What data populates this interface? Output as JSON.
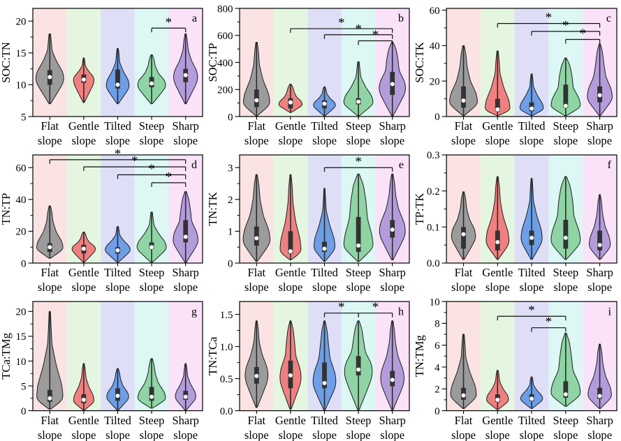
{
  "figure": {
    "title": "",
    "categories": [
      {
        "name": "Flat slope",
        "line1": "Flat",
        "line2": "slope"
      },
      {
        "name": "Gentle slope",
        "line1": "Gentle",
        "line2": "slope"
      },
      {
        "name": "Tilted slope",
        "line1": "Tilted",
        "line2": "slope"
      },
      {
        "name": "Steep slope",
        "line1": "Steep",
        "line2": "slope"
      },
      {
        "name": "Sharp slope",
        "line1": "Sharp",
        "line2": "slope"
      }
    ],
    "significance_symbol": "*"
  },
  "colors": {
    "band_fills": [
      "#fbe3e3",
      "#e4f6e0",
      "#dedff7",
      "#dcf7f4",
      "#fae2f8"
    ],
    "violin_fills": [
      "#9b9b9b",
      "#f08080",
      "#6d9ee6",
      "#8fd4a4",
      "#b49cdb"
    ],
    "violin_edge": "#1f1f1f",
    "box_fill": "#323232",
    "whisker": "#2b2b2b",
    "median_dot": "#ffffff",
    "axis": "#000000",
    "background": "#ffffff"
  },
  "chart_data": [
    {
      "id": "a",
      "type": "violin",
      "ylabel": "SOC:TN",
      "ylim": [
        5,
        22
      ],
      "minor_step": 2.5,
      "yticks": [
        {
          "v": 5,
          "label": "5"
        },
        {
          "v": 10,
          "label": "10"
        },
        {
          "v": 15,
          "label": "15"
        },
        {
          "v": 20,
          "label": "20"
        }
      ],
      "violins": [
        {
          "category": "Flat slope",
          "min": 7,
          "max": 18,
          "q1": 10,
          "q3": 12.3,
          "median": 11.2,
          "mode": 11,
          "width": 0.95,
          "tail": 0.18
        },
        {
          "category": "Gentle slope",
          "min": 7.2,
          "max": 14.2,
          "q1": 10.3,
          "q3": 11.6,
          "median": 10.8,
          "mode": 10.8,
          "width": 0.7,
          "tail": 0.18
        },
        {
          "category": "Tilted slope",
          "min": 7,
          "max": 15.7,
          "q1": 9.4,
          "q3": 12.4,
          "median": 10,
          "mode": 9.9,
          "width": 0.78,
          "tail": 0.2
        },
        {
          "category": "Steep slope",
          "min": 7,
          "max": 14.7,
          "q1": 9.6,
          "q3": 11.2,
          "median": 10.2,
          "mode": 10,
          "width": 0.95,
          "tail": 0.3
        },
        {
          "category": "Sharp slope",
          "min": 7,
          "max": 18,
          "q1": 10.4,
          "q3": 12.5,
          "median": 11.5,
          "mode": 11.2,
          "width": 0.82,
          "tail": 0.25
        }
      ],
      "brackets": [
        {
          "from": "Steep slope",
          "to": "Sharp slope",
          "y": 18.9,
          "label": "*"
        }
      ]
    },
    {
      "id": "b",
      "type": "violin",
      "ylabel": "SOC:TP",
      "ylim": [
        0,
        800
      ],
      "minor_step": 100,
      "yticks": [
        {
          "v": 0,
          "label": "0"
        },
        {
          "v": 200,
          "label": "200"
        },
        {
          "v": 400,
          "label": "400"
        },
        {
          "v": 600,
          "label": "600"
        },
        {
          "v": 800,
          "label": "800"
        }
      ],
      "violins": [
        {
          "category": "Flat slope",
          "min": 5,
          "max": 550,
          "q1": 70,
          "q3": 200,
          "median": 120,
          "mode": 100,
          "width": 0.9,
          "tail": 0.25
        },
        {
          "category": "Gentle slope",
          "min": 30,
          "max": 240,
          "q1": 60,
          "q3": 135,
          "median": 105,
          "mode": 90,
          "width": 0.8,
          "tail": 0.35
        },
        {
          "category": "Tilted slope",
          "min": 5,
          "max": 220,
          "q1": 60,
          "q3": 120,
          "median": 95,
          "mode": 85,
          "width": 0.75,
          "tail": 0.25
        },
        {
          "category": "Steep slope",
          "min": 5,
          "max": 405,
          "q1": 90,
          "q3": 135,
          "median": 110,
          "mode": 105,
          "width": 1.0,
          "tail": 0.1
        },
        {
          "category": "Sharp slope",
          "min": 5,
          "max": 550,
          "q1": 160,
          "q3": 330,
          "median": 240,
          "mode": 210,
          "width": 0.9,
          "tail": 0.5
        }
      ],
      "brackets": [
        {
          "from": "Gentle slope",
          "to": "Sharp slope",
          "y": 650,
          "label": "*"
        },
        {
          "from": "Tilted slope",
          "to": "Sharp slope",
          "y": 605,
          "label": "*"
        },
        {
          "from": "Steep slope",
          "to": "Sharp slope",
          "y": 560,
          "label": "*"
        }
      ]
    },
    {
      "id": "c",
      "type": "violin",
      "ylabel": "SOC:TK",
      "ylim": [
        0,
        61
      ],
      "minor_step": 10,
      "yticks": [
        {
          "v": 0,
          "label": "0"
        },
        {
          "v": 20,
          "label": "20"
        },
        {
          "v": 40,
          "label": "40"
        },
        {
          "v": 60,
          "label": "60"
        }
      ],
      "violins": [
        {
          "category": "Flat slope",
          "min": 0.5,
          "max": 40,
          "q1": 5,
          "q3": 17,
          "median": 9,
          "mode": 8,
          "width": 0.95,
          "tail": 0.3
        },
        {
          "category": "Gentle slope",
          "min": 0.5,
          "max": 37,
          "q1": 3,
          "q3": 10,
          "median": 4,
          "mode": 4,
          "width": 0.85,
          "tail": 0.22
        },
        {
          "category": "Tilted slope",
          "min": 0.5,
          "max": 24,
          "q1": 3,
          "q3": 8,
          "median": 4.5,
          "mode": 4.5,
          "width": 0.8,
          "tail": 0.18
        },
        {
          "category": "Steep slope",
          "min": 0.5,
          "max": 33,
          "q1": 5,
          "q3": 18,
          "median": 6,
          "mode": 6,
          "width": 1.0,
          "tail": 0.5
        },
        {
          "category": "Sharp slope",
          "min": 0.5,
          "max": 41,
          "q1": 8,
          "q3": 17,
          "median": 12,
          "mode": 11,
          "width": 0.85,
          "tail": 0.38
        }
      ],
      "brackets": [
        {
          "from": "Gentle slope",
          "to": "Sharp slope",
          "y": 52.5,
          "label": "*"
        },
        {
          "from": "Tilted slope",
          "to": "Sharp slope",
          "y": 48,
          "label": "*"
        },
        {
          "from": "Steep slope",
          "to": "Sharp slope",
          "y": 43.5,
          "label": "*"
        }
      ]
    },
    {
      "id": "d",
      "type": "violin",
      "ylabel": "TN:TP",
      "ylim": [
        0,
        68
      ],
      "minor_step": 10,
      "yticks": [
        {
          "v": 0,
          "label": "0"
        },
        {
          "v": 20,
          "label": "20"
        },
        {
          "v": 40,
          "label": "40"
        },
        {
          "v": 60,
          "label": "60"
        }
      ],
      "violins": [
        {
          "category": "Flat slope",
          "min": 3,
          "max": 36,
          "q1": 7,
          "q3": 12.5,
          "median": 10,
          "mode": 9.5,
          "width": 0.9,
          "tail": 0.28
        },
        {
          "category": "Gentle slope",
          "min": 0.5,
          "max": 19.5,
          "q1": 6,
          "q3": 11.5,
          "median": 9,
          "mode": 9,
          "width": 0.8,
          "tail": 0.3
        },
        {
          "category": "Tilted slope",
          "min": 0.5,
          "max": 23,
          "q1": 6,
          "q3": 10,
          "median": 8,
          "mode": 8.5,
          "width": 0.85,
          "tail": 0.18
        },
        {
          "category": "Steep slope",
          "min": 0.5,
          "max": 32,
          "q1": 9,
          "q3": 13,
          "median": 10,
          "mode": 10,
          "width": 1.0,
          "tail": 0.15
        },
        {
          "category": "Sharp slope",
          "min": 0.5,
          "max": 45,
          "q1": 13,
          "q3": 27,
          "median": 16.5,
          "mode": 14.5,
          "width": 0.85,
          "tail": 0.45
        }
      ],
      "brackets": [
        {
          "from": "Flat slope",
          "to": "Sharp slope",
          "y": 65,
          "label": "*"
        },
        {
          "from": "Gentle slope",
          "to": "Sharp slope",
          "y": 60.5,
          "label": "*"
        },
        {
          "from": "Tilted slope",
          "to": "Sharp slope",
          "y": 55.5,
          "label": "*"
        },
        {
          "from": "Steep slope",
          "to": "Sharp slope",
          "y": 50.5,
          "label": "*"
        }
      ]
    },
    {
      "id": "e",
      "type": "violin",
      "ylabel": "TN:TK",
      "ylim": [
        0,
        3.4
      ],
      "minor_step": 0.5,
      "yticks": [
        {
          "v": 0,
          "label": "0"
        },
        {
          "v": 1,
          "label": "1"
        },
        {
          "v": 2,
          "label": "2"
        },
        {
          "v": 3,
          "label": "3"
        }
      ],
      "violins": [
        {
          "category": "Flat slope",
          "min": 0.05,
          "max": 2.78,
          "q1": 0.55,
          "q3": 1.15,
          "median": 0.78,
          "mode": 0.72,
          "width": 0.92,
          "tail": 0.3
        },
        {
          "category": "Gentle slope",
          "min": 0.1,
          "max": 2.78,
          "q1": 0.3,
          "q3": 1.0,
          "median": 0.37,
          "mode": 0.38,
          "width": 0.72,
          "tail": 0.28
        },
        {
          "category": "Tilted slope",
          "min": 0.05,
          "max": 2.35,
          "q1": 0.35,
          "q3": 0.67,
          "median": 0.45,
          "mode": 0.5,
          "width": 0.72,
          "tail": 0.16
        },
        {
          "category": "Steep slope",
          "min": 0.05,
          "max": 2.8,
          "q1": 0.35,
          "q3": 1.45,
          "median": 0.55,
          "mode": 0.55,
          "width": 1.0,
          "tail": 0.6
        },
        {
          "category": "Sharp slope",
          "min": 0.1,
          "max": 2.8,
          "q1": 0.8,
          "q3": 1.35,
          "median": 1.05,
          "mode": 1.0,
          "width": 0.88,
          "tail": 0.3
        }
      ],
      "brackets": [
        {
          "from": "Tilted slope",
          "to": "Sharp slope",
          "y": 3.0,
          "label": "*"
        }
      ]
    },
    {
      "id": "f",
      "type": "violin",
      "ylabel": "TP:TK",
      "ylim": [
        0,
        0.3
      ],
      "minor_step": 0.05,
      "yticks": [
        {
          "v": 0,
          "label": "0.0"
        },
        {
          "v": 0.1,
          "label": "0.1"
        },
        {
          "v": 0.2,
          "label": "0.2"
        },
        {
          "v": 0.3,
          "label": "0.3"
        }
      ],
      "violins": [
        {
          "category": "Flat slope",
          "min": 0.01,
          "max": 0.198,
          "q1": 0.04,
          "q3": 0.1,
          "median": 0.08,
          "mode": 0.075,
          "width": 0.82,
          "tail": 0.3
        },
        {
          "category": "Gentle slope",
          "min": 0.01,
          "max": 0.24,
          "q1": 0.035,
          "q3": 0.09,
          "median": 0.058,
          "mode": 0.06,
          "width": 0.78,
          "tail": 0.28
        },
        {
          "category": "Tilted slope",
          "min": 0.01,
          "max": 0.235,
          "q1": 0.05,
          "q3": 0.09,
          "median": 0.07,
          "mode": 0.068,
          "width": 0.72,
          "tail": 0.2
        },
        {
          "category": "Steep slope",
          "min": 0.01,
          "max": 0.24,
          "q1": 0.04,
          "q3": 0.12,
          "median": 0.07,
          "mode": 0.062,
          "width": 1.0,
          "tail": 0.55
        },
        {
          "category": "Sharp slope",
          "min": 0.01,
          "max": 0.19,
          "q1": 0.035,
          "q3": 0.09,
          "median": 0.05,
          "mode": 0.05,
          "width": 0.72,
          "tail": 0.3
        }
      ],
      "brackets": []
    },
    {
      "id": "g",
      "type": "violin",
      "ylabel": "TCa:TMg",
      "ylim": [
        0,
        22
      ],
      "minor_step": 2.5,
      "yticks": [
        {
          "v": 0,
          "label": "0"
        },
        {
          "v": 5,
          "label": "5"
        },
        {
          "v": 10,
          "label": "10"
        },
        {
          "v": 15,
          "label": "15"
        },
        {
          "v": 20,
          "label": "20"
        }
      ],
      "violins": [
        {
          "category": "Flat slope",
          "min": 0.3,
          "max": 20,
          "q1": 1.8,
          "q3": 4.2,
          "median": 2.5,
          "mode": 2.5,
          "width": 0.9,
          "tail": 0.16
        },
        {
          "category": "Gentle slope",
          "min": 0.1,
          "max": 9.5,
          "q1": 1.5,
          "q3": 3.3,
          "median": 2.2,
          "mode": 2,
          "width": 0.7,
          "tail": 0.25
        },
        {
          "category": "Tilted slope",
          "min": 0.1,
          "max": 8.5,
          "q1": 2,
          "q3": 4.5,
          "median": 3,
          "mode": 2.8,
          "width": 0.75,
          "tail": 0.3
        },
        {
          "category": "Steep slope",
          "min": 0.5,
          "max": 10.5,
          "q1": 2,
          "q3": 4.8,
          "median": 2.8,
          "mode": 2.5,
          "width": 0.95,
          "tail": 0.3
        },
        {
          "category": "Sharp slope",
          "min": 0.1,
          "max": 9.5,
          "q1": 2.2,
          "q3": 4,
          "median": 2.8,
          "mode": 2.8,
          "width": 0.7,
          "tail": 0.22
        }
      ],
      "brackets": []
    },
    {
      "id": "h",
      "type": "violin",
      "ylabel": "TN:TCa",
      "ylim": [
        0,
        1.7
      ],
      "minor_step": 0.25,
      "yticks": [
        {
          "v": 0,
          "label": "0.0"
        },
        {
          "v": 0.5,
          "label": "0.5"
        },
        {
          "v": 1.0,
          "label": "1.0"
        },
        {
          "v": 1.5,
          "label": "1.5"
        }
      ],
      "violins": [
        {
          "category": "Flat slope",
          "min": 0.05,
          "max": 1.4,
          "q1": 0.42,
          "q3": 0.68,
          "median": 0.54,
          "mode": 0.55,
          "width": 0.78,
          "tail": 0.26
        },
        {
          "category": "Gentle slope",
          "min": 0.02,
          "max": 1.4,
          "q1": 0.35,
          "q3": 0.78,
          "median": 0.55,
          "mode": 0.52,
          "width": 0.72,
          "tail": 0.45
        },
        {
          "category": "Tilted slope",
          "min": 0.01,
          "max": 1.4,
          "q1": 0.35,
          "q3": 0.75,
          "median": 0.43,
          "mode": 0.45,
          "width": 0.78,
          "tail": 0.4
        },
        {
          "category": "Steep slope",
          "min": 0.01,
          "max": 1.4,
          "q1": 0.55,
          "q3": 0.85,
          "median": 0.64,
          "mode": 0.62,
          "width": 0.95,
          "tail": 0.42
        },
        {
          "category": "Sharp slope",
          "min": 0.01,
          "max": 1.4,
          "q1": 0.38,
          "q3": 0.62,
          "median": 0.48,
          "mode": 0.5,
          "width": 0.8,
          "tail": 0.3
        }
      ],
      "brackets": [
        {
          "from": "Tilted slope",
          "to": "Steep slope",
          "y": 1.52,
          "label": "*"
        },
        {
          "from": "Steep slope",
          "to": "Sharp slope",
          "y": 1.52,
          "label": "*"
        }
      ]
    },
    {
      "id": "i",
      "type": "violin",
      "ylabel": "TN:TMg",
      "ylim": [
        0,
        10
      ],
      "minor_step": 1,
      "yticks": [
        {
          "v": 0,
          "label": "0"
        },
        {
          "v": 2,
          "label": "2"
        },
        {
          "v": 4,
          "label": "4"
        },
        {
          "v": 6,
          "label": "6"
        },
        {
          "v": 8,
          "label": "8"
        },
        {
          "v": 10,
          "label": "10"
        }
      ],
      "violins": [
        {
          "category": "Flat slope",
          "min": 0.2,
          "max": 7,
          "q1": 1.0,
          "q3": 2.1,
          "median": 1.4,
          "mode": 1.4,
          "width": 0.88,
          "tail": 0.2
        },
        {
          "category": "Gentle slope",
          "min": 0.1,
          "max": 3.7,
          "q1": 0.8,
          "q3": 1.5,
          "median": 1.0,
          "mode": 1.0,
          "width": 0.75,
          "tail": 0.22
        },
        {
          "category": "Tilted slope",
          "min": 0.2,
          "max": 3.1,
          "q1": 0.9,
          "q3": 1.5,
          "median": 1.1,
          "mode": 1.1,
          "width": 0.75,
          "tail": 0.2
        },
        {
          "category": "Steep slope",
          "min": 0.4,
          "max": 7.1,
          "q1": 1.2,
          "q3": 2.7,
          "median": 1.5,
          "mode": 1.6,
          "width": 1.0,
          "tail": 0.45
        },
        {
          "category": "Sharp slope",
          "min": 0.2,
          "max": 6.1,
          "q1": 1.1,
          "q3": 2.1,
          "median": 1.35,
          "mode": 1.4,
          "width": 0.8,
          "tail": 0.3
        }
      ],
      "brackets": [
        {
          "from": "Gentle slope",
          "to": "Steep slope",
          "y": 8.65,
          "label": "*"
        },
        {
          "from": "Tilted slope",
          "to": "Steep slope",
          "y": 7.6,
          "label": "*"
        }
      ]
    }
  ]
}
